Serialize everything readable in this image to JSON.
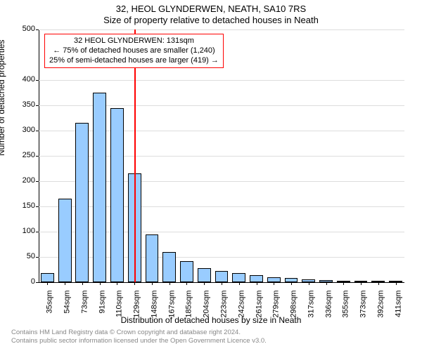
{
  "chart": {
    "type": "histogram",
    "title_main": "32, HEOL GLYNDERWEN, NEATH, SA10 7RS",
    "title_sub": "Size of property relative to detached houses in Neath",
    "title_fontsize": 13,
    "x_axis_title": "Distribution of detached houses by size in Neath",
    "y_axis_title": "Number of detached properties",
    "axis_title_fontsize": 12,
    "label_fontsize": 11,
    "background_color": "#ffffff",
    "grid_color": "#dddddd",
    "bar_color": "#99ccff",
    "bar_border_color": "#000000",
    "vline_color": "#ff0000",
    "vline_width": 2,
    "ylim": [
      0,
      500
    ],
    "yticks": [
      0,
      50,
      100,
      150,
      200,
      250,
      300,
      350,
      400,
      500
    ],
    "x_categories": [
      "35sqm",
      "54sqm",
      "73sqm",
      "91sqm",
      "110sqm",
      "129sqm",
      "148sqm",
      "167sqm",
      "185sqm",
      "204sqm",
      "223sqm",
      "242sqm",
      "261sqm",
      "279sqm",
      "298sqm",
      "317sqm",
      "336sqm",
      "355sqm",
      "373sqm",
      "392sqm",
      "411sqm"
    ],
    "values": [
      18,
      165,
      315,
      375,
      345,
      215,
      95,
      60,
      42,
      28,
      22,
      18,
      14,
      10,
      8,
      6,
      4,
      3,
      3,
      2,
      2
    ],
    "vline_x_value": 131,
    "x_min": 35,
    "x_step": 19,
    "annotation": {
      "lines": [
        "32 HEOL GLYNDERWEN: 131sqm",
        "← 75% of detached houses are smaller (1,240)",
        "25% of semi-detached houses are larger (419) →"
      ],
      "border_color": "#ff0000",
      "background_color": "#ffffff",
      "fontsize": 11
    }
  },
  "footnote": {
    "line1": "Contains HM Land Registry data © Crown copyright and database right 2024.",
    "line2": "Contains public sector information licensed under the Open Government Licence v3.0.",
    "color": "#888888",
    "fontsize": 9.5
  }
}
